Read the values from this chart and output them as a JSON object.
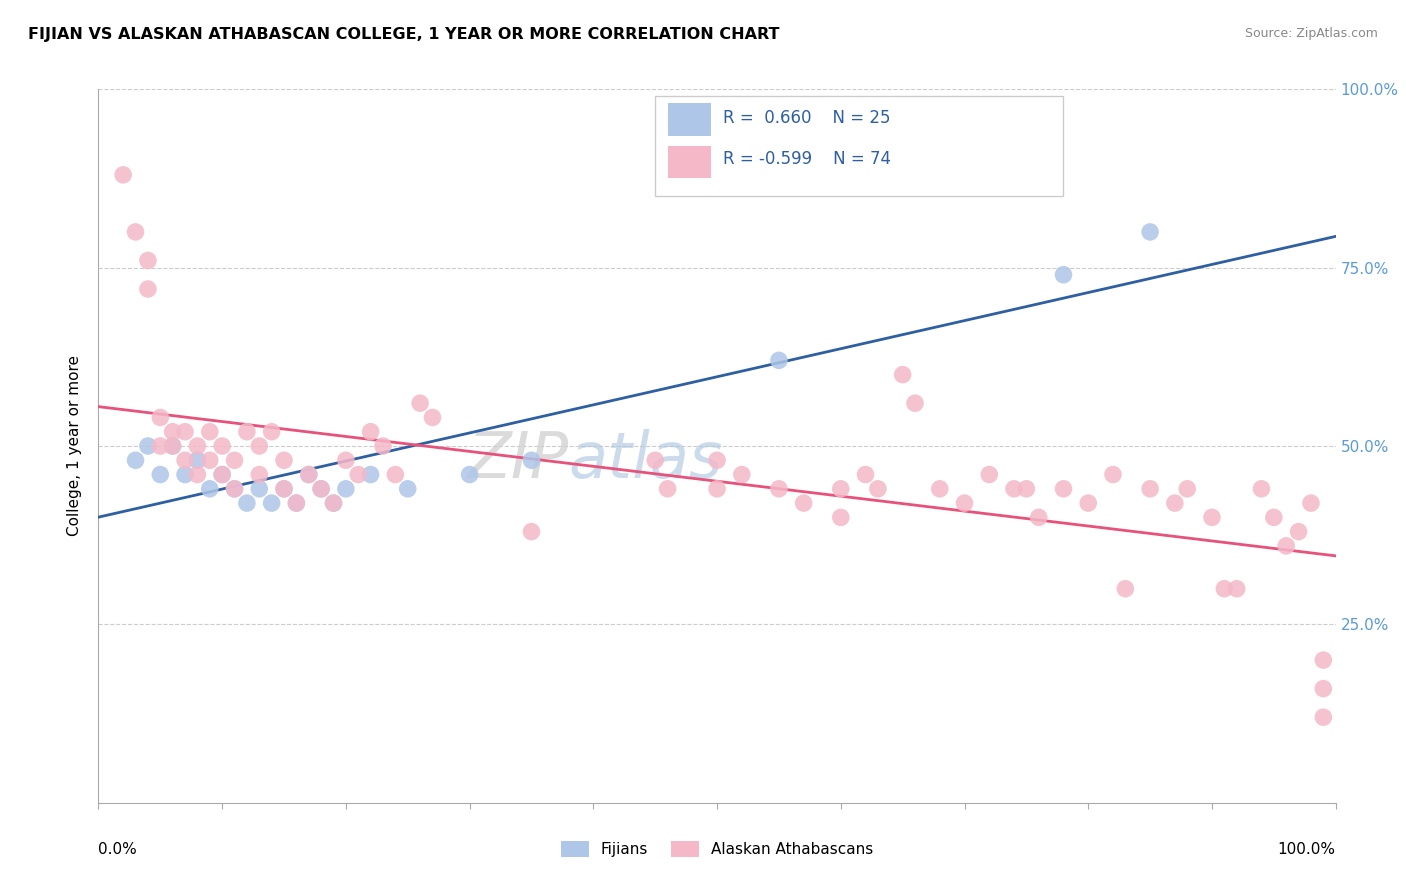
{
  "title": "FIJIAN VS ALASKAN ATHABASCAN COLLEGE, 1 YEAR OR MORE CORRELATION CHART",
  "source_text": "Source: ZipAtlas.com",
  "ylabel": "College, 1 year or more",
  "fijian_color": "#aec6e8",
  "alaskan_color": "#f4b8c8",
  "fijian_line_color": "#2e5fa3",
  "alaskan_line_color": "#e8527a",
  "fijian_label": "Fijians",
  "alaskan_label": "Alaskan Athabascans",
  "legend_text_color": "#2e5fa3",
  "right_tick_color": "#5b9bd5",
  "fijian_points": [
    [
      0.03,
      0.48
    ],
    [
      0.04,
      0.5
    ],
    [
      0.05,
      0.46
    ],
    [
      0.06,
      0.5
    ],
    [
      0.07,
      0.46
    ],
    [
      0.08,
      0.48
    ],
    [
      0.09,
      0.44
    ],
    [
      0.1,
      0.46
    ],
    [
      0.11,
      0.44
    ],
    [
      0.12,
      0.42
    ],
    [
      0.13,
      0.44
    ],
    [
      0.14,
      0.42
    ],
    [
      0.15,
      0.44
    ],
    [
      0.16,
      0.42
    ],
    [
      0.17,
      0.46
    ],
    [
      0.18,
      0.44
    ],
    [
      0.19,
      0.42
    ],
    [
      0.2,
      0.44
    ],
    [
      0.22,
      0.46
    ],
    [
      0.25,
      0.44
    ],
    [
      0.3,
      0.46
    ],
    [
      0.35,
      0.48
    ],
    [
      0.55,
      0.62
    ],
    [
      0.78,
      0.74
    ],
    [
      0.85,
      0.8
    ]
  ],
  "alaskan_points": [
    [
      0.02,
      0.88
    ],
    [
      0.03,
      0.8
    ],
    [
      0.04,
      0.76
    ],
    [
      0.04,
      0.72
    ],
    [
      0.05,
      0.5
    ],
    [
      0.05,
      0.54
    ],
    [
      0.06,
      0.52
    ],
    [
      0.06,
      0.5
    ],
    [
      0.07,
      0.52
    ],
    [
      0.07,
      0.48
    ],
    [
      0.08,
      0.5
    ],
    [
      0.08,
      0.46
    ],
    [
      0.09,
      0.52
    ],
    [
      0.09,
      0.48
    ],
    [
      0.1,
      0.5
    ],
    [
      0.1,
      0.46
    ],
    [
      0.11,
      0.48
    ],
    [
      0.11,
      0.44
    ],
    [
      0.12,
      0.52
    ],
    [
      0.13,
      0.5
    ],
    [
      0.13,
      0.46
    ],
    [
      0.14,
      0.52
    ],
    [
      0.15,
      0.48
    ],
    [
      0.15,
      0.44
    ],
    [
      0.16,
      0.42
    ],
    [
      0.17,
      0.46
    ],
    [
      0.18,
      0.44
    ],
    [
      0.19,
      0.42
    ],
    [
      0.2,
      0.48
    ],
    [
      0.21,
      0.46
    ],
    [
      0.22,
      0.52
    ],
    [
      0.23,
      0.5
    ],
    [
      0.24,
      0.46
    ],
    [
      0.26,
      0.56
    ],
    [
      0.27,
      0.54
    ],
    [
      0.35,
      0.38
    ],
    [
      0.45,
      0.48
    ],
    [
      0.46,
      0.44
    ],
    [
      0.5,
      0.48
    ],
    [
      0.5,
      0.44
    ],
    [
      0.52,
      0.46
    ],
    [
      0.55,
      0.44
    ],
    [
      0.57,
      0.42
    ],
    [
      0.6,
      0.44
    ],
    [
      0.6,
      0.4
    ],
    [
      0.62,
      0.46
    ],
    [
      0.63,
      0.44
    ],
    [
      0.65,
      0.6
    ],
    [
      0.66,
      0.56
    ],
    [
      0.68,
      0.44
    ],
    [
      0.7,
      0.42
    ],
    [
      0.72,
      0.46
    ],
    [
      0.74,
      0.44
    ],
    [
      0.75,
      0.44
    ],
    [
      0.76,
      0.4
    ],
    [
      0.78,
      0.44
    ],
    [
      0.8,
      0.42
    ],
    [
      0.82,
      0.46
    ],
    [
      0.83,
      0.3
    ],
    [
      0.85,
      0.44
    ],
    [
      0.87,
      0.42
    ],
    [
      0.88,
      0.44
    ],
    [
      0.9,
      0.4
    ],
    [
      0.91,
      0.3
    ],
    [
      0.92,
      0.3
    ],
    [
      0.94,
      0.44
    ],
    [
      0.95,
      0.4
    ],
    [
      0.96,
      0.36
    ],
    [
      0.97,
      0.38
    ],
    [
      0.98,
      0.42
    ],
    [
      0.99,
      0.2
    ],
    [
      0.99,
      0.16
    ],
    [
      0.99,
      0.12
    ]
  ],
  "ylim": [
    0.0,
    1.0
  ],
  "xlim": [
    0.0,
    1.0
  ],
  "yticks": [
    0.0,
    0.25,
    0.5,
    0.75,
    1.0
  ],
  "ytick_labels_right": [
    "",
    "25.0%",
    "50.0%",
    "75.0%",
    "100.0%"
  ]
}
